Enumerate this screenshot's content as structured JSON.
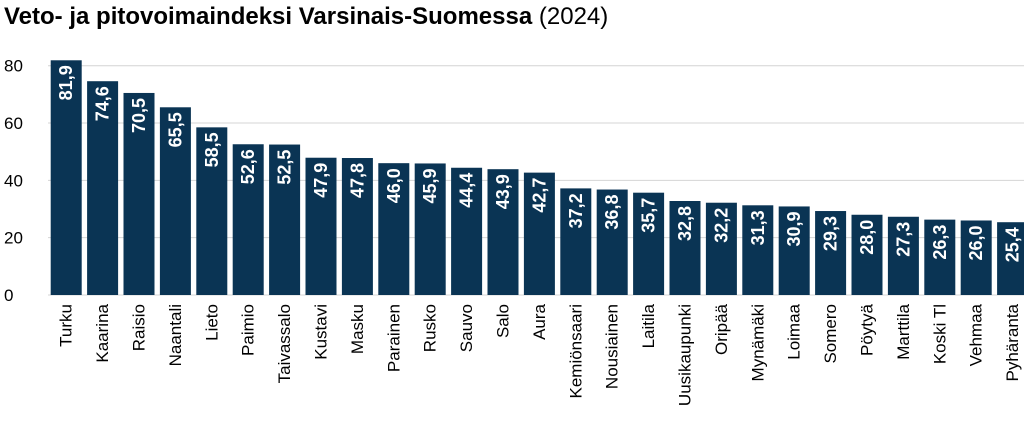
{
  "chart_data": {
    "type": "bar",
    "title": "Veto- ja pitovoimaindeksi Varsinais-Suomessa",
    "subtitle": "(2024)",
    "categories": [
      "Turku",
      "Kaarina",
      "Raisio",
      "Naantali",
      "Lieto",
      "Paimio",
      "Taivassalo",
      "Kustavi",
      "Masku",
      "Parainen",
      "Rusko",
      "Sauvo",
      "Salo",
      "Aura",
      "Kemiönsaari",
      "Nousiainen",
      "Laitila",
      "Uusikaupunki",
      "Oripää",
      "Mynämäki",
      "Loimaa",
      "Somero",
      "Pöytyä",
      "Marttila",
      "Koski Tl",
      "Vehmaa",
      "Pyhäranta"
    ],
    "values": [
      81.9,
      74.6,
      70.5,
      65.5,
      58.5,
      52.6,
      52.5,
      47.9,
      47.8,
      46.0,
      45.9,
      44.4,
      43.9,
      42.7,
      37.2,
      36.8,
      35.7,
      32.8,
      32.2,
      31.3,
      30.9,
      29.3,
      28.0,
      27.3,
      26.3,
      26.0,
      25.4
    ],
    "value_labels": [
      "81,9",
      "74,6",
      "70,5",
      "65,5",
      "58,5",
      "52,6",
      "52,5",
      "47,9",
      "47,8",
      "46,0",
      "45,9",
      "44,4",
      "43,9",
      "42,7",
      "37,2",
      "36,8",
      "35,7",
      "32,8",
      "32,2",
      "31,3",
      "30,9",
      "29,3",
      "28,0",
      "27,3",
      "26,3",
      "26,0",
      "25,4"
    ],
    "yticks": [
      0,
      20,
      40,
      60,
      80
    ],
    "ylim": [
      0,
      82
    ],
    "xlabel": "",
    "ylabel": "",
    "grid": true,
    "bar_color": "#0a3454",
    "grid_color": "#d4d4d4"
  }
}
